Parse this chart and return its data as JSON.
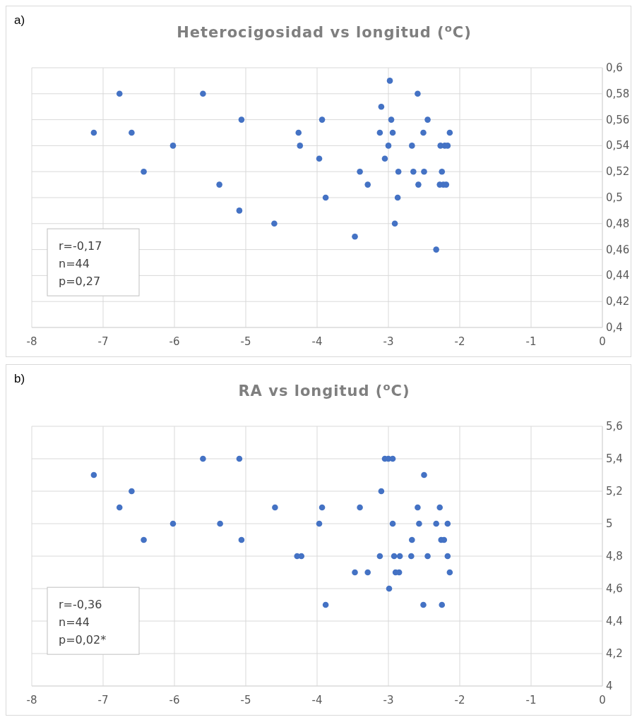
{
  "chart_data": [
    {
      "type": "scatter",
      "title": "Heterocigosidad vs longitud ($^{o}$C)",
      "annotations": [
        "a)",
        "r=-0,17",
        "n=44",
        "p=0,27"
      ],
      "color": "#4472c4",
      "marker": "circle",
      "grid": true,
      "xlim": [
        -8,
        0
      ],
      "xticks": [
        -8,
        -7,
        -6,
        -5,
        -4,
        -3,
        -2,
        -1,
        0
      ],
      "ylim": [
        0.4,
        0.6
      ],
      "yticks": [
        {
          "value": 0.4,
          "label": "0,4"
        },
        {
          "value": 0.42,
          "label": "0,42"
        },
        {
          "value": 0.44,
          "label": "0,44"
        },
        {
          "value": 0.46,
          "label": "0,46"
        },
        {
          "value": 0.48,
          "label": "0,48"
        },
        {
          "value": 0.5,
          "label": "0,5"
        },
        {
          "value": 0.52,
          "label": "0,52"
        },
        {
          "value": 0.54,
          "label": "0,54"
        },
        {
          "value": 0.56,
          "label": "0,56"
        },
        {
          "value": 0.58,
          "label": "0,58"
        },
        {
          "value": 0.6,
          "label": "0,6"
        }
      ],
      "x": [
        -7.13,
        -6.77,
        -6.6,
        -6.43,
        -6.02,
        -5.6,
        -5.37,
        -5.06,
        -5.09,
        -4.6,
        -4.26,
        -4.24,
        -3.93,
        -3.97,
        -3.88,
        -3.47,
        -3.4,
        -3.29,
        -3.12,
        -3.1,
        -3.05,
        -2.98,
        -3.0,
        -2.96,
        -2.94,
        -2.91,
        -2.87,
        -2.86,
        -2.67,
        -2.65,
        -2.59,
        -2.58,
        -2.5,
        -2.51,
        -2.45,
        -2.33,
        -2.25,
        -2.27,
        -2.21,
        -2.17,
        -2.28,
        -2.19,
        -2.14,
        -2.23
      ],
      "values": [
        0.55,
        0.58,
        0.55,
        0.52,
        0.54,
        0.58,
        0.51,
        0.56,
        0.49,
        0.48,
        0.55,
        0.54,
        0.56,
        0.53,
        0.5,
        0.47,
        0.52,
        0.51,
        0.55,
        0.57,
        0.53,
        0.59,
        0.54,
        0.56,
        0.55,
        0.48,
        0.5,
        0.52,
        0.54,
        0.52,
        0.58,
        0.51,
        0.52,
        0.55,
        0.56,
        0.46,
        0.52,
        0.54,
        0.54,
        0.54,
        0.51,
        0.51,
        0.55,
        0.51
      ]
    },
    {
      "type": "scatter",
      "title": "RA vs longitud ($^{o}$C)",
      "annotations": [
        "b)",
        "r=-0,36",
        "n=44",
        "p=0,02*"
      ],
      "color": "#4472c4",
      "marker": "circle",
      "grid": true,
      "xlim": [
        -8,
        0
      ],
      "xticks": [
        -8,
        -7,
        -6,
        -5,
        -4,
        -3,
        -2,
        -1,
        0
      ],
      "ylim": [
        4,
        5.6
      ],
      "yticks": [
        4,
        {
          "value": 4.2,
          "label": "4,2"
        },
        {
          "value": 4.4,
          "label": "4,4"
        },
        {
          "value": 4.6,
          "label": "4,6"
        },
        {
          "value": 4.8,
          "label": "4,8"
        },
        5,
        {
          "value": 5.2,
          "label": "5,2"
        },
        {
          "value": 5.4,
          "label": "5,4"
        },
        {
          "value": 5.6,
          "label": "5,6"
        }
      ],
      "x": [
        -7.13,
        -6.77,
        -6.6,
        -6.43,
        -6.02,
        -5.6,
        -5.36,
        -5.09,
        -5.06,
        -4.59,
        -4.28,
        -4.22,
        -3.97,
        -3.93,
        -3.88,
        -3.47,
        -3.4,
        -3.29,
        -3.12,
        -3.1,
        -3.05,
        -3.0,
        -2.94,
        -2.99,
        -2.94,
        -2.92,
        -2.84,
        -2.9,
        -2.85,
        -2.67,
        -2.68,
        -2.59,
        -2.57,
        -2.5,
        -2.51,
        -2.45,
        -2.33,
        -2.28,
        -2.26,
        -2.22,
        -2.25,
        -2.17,
        -2.17,
        -2.14
      ],
      "values": [
        5.3,
        5.1,
        5.2,
        4.9,
        5.0,
        5.4,
        5.0,
        5.4,
        4.9,
        5.1,
        4.8,
        4.8,
        5.0,
        5.1,
        4.5,
        4.7,
        5.1,
        4.7,
        4.8,
        5.2,
        5.4,
        5.4,
        5.4,
        4.6,
        5.0,
        4.8,
        4.8,
        4.7,
        4.7,
        4.9,
        4.8,
        5.1,
        5.0,
        5.3,
        4.5,
        4.8,
        5.0,
        5.1,
        4.9,
        4.9,
        4.5,
        5.0,
        4.8,
        4.7
      ]
    }
  ]
}
